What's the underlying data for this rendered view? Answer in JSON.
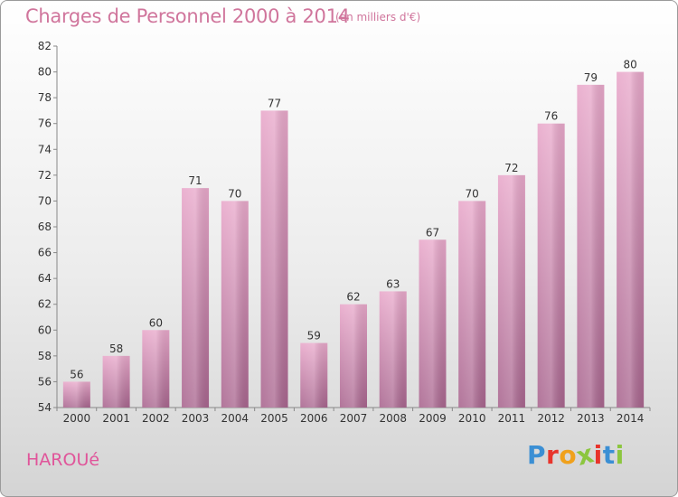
{
  "header": {
    "title": "Charges de Personnel 2000 à 2014",
    "subtitle": "(en milliers d'€)"
  },
  "footer": {
    "commune": "HAROUé",
    "logo": "Proxiti"
  },
  "colors": {
    "bar_light": "#e9a9cb",
    "bar_dark": "#a9668f",
    "title": "#d0759c",
    "logo": [
      "#3b8fd4",
      "#e8342c",
      "#f0a11c",
      "#8cc63f",
      "#e8342c",
      "#3b8fd4",
      "#8cc63f"
    ]
  },
  "chart_data": {
    "type": "bar",
    "title": "Charges de Personnel 2000 à 2014",
    "subtitle": "(en milliers d'€)",
    "categories": [
      "2000",
      "2001",
      "2002",
      "2003",
      "2004",
      "2005",
      "2006",
      "2007",
      "2008",
      "2009",
      "2010",
      "2011",
      "2012",
      "2013",
      "2014"
    ],
    "values": [
      56,
      58,
      60,
      71,
      70,
      77,
      59,
      62,
      63,
      67,
      70,
      72,
      76,
      79,
      80
    ],
    "ylim": [
      54,
      82
    ],
    "yticks": [
      54,
      56,
      58,
      60,
      62,
      64,
      66,
      68,
      70,
      72,
      74,
      76,
      78,
      80,
      82
    ],
    "grid": false,
    "data_labels": true
  }
}
